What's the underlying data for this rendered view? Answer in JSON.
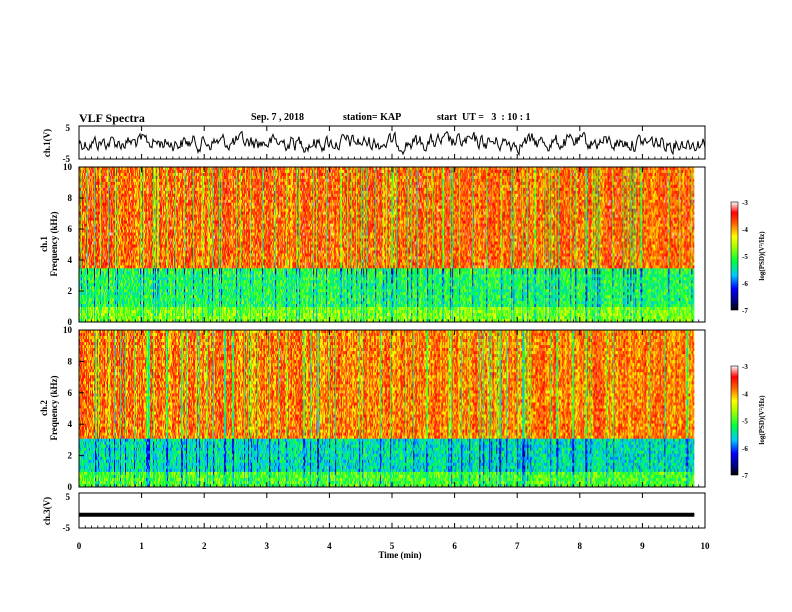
{
  "header": {
    "title": "VLF Spectra",
    "date": "Sep. 7 , 2018",
    "station": "station= KAP",
    "start": "start  UT =   3  : 10 : 1"
  },
  "chart_data": [
    {
      "type": "line",
      "ylabel": "ch.1(V)",
      "ylim": [
        -5,
        5
      ],
      "yticks": [
        "5",
        "-5"
      ],
      "xlim": [
        0,
        10
      ],
      "description_values": {
        "baseline": 0,
        "amplitude": 2
      }
    },
    {
      "type": "heatmap",
      "ylabel_line1": "ch.1",
      "ylabel_line2": "Frequency (kHz)",
      "ylim": [
        0,
        10
      ],
      "yticks": [
        "0",
        "2",
        "4",
        "6",
        "8",
        "10"
      ],
      "xlim": [
        0,
        9.83
      ],
      "colorbar": {
        "min": -7,
        "max": -3,
        "ticks": [
          "-3",
          "-4",
          "-5",
          "-6",
          "-7"
        ],
        "label": "log(PSD)(V²/Hz)"
      },
      "bands": [
        {
          "from": 0,
          "to": 1,
          "level": -4.8
        },
        {
          "from": 1,
          "to": 3.5,
          "level": -5.2
        },
        {
          "from": 3.5,
          "to": 10,
          "level": -3.8
        }
      ]
    },
    {
      "type": "heatmap",
      "ylabel_line1": "ch.2",
      "ylabel_line2": "Frequency (kHz)",
      "ylim": [
        0,
        10
      ],
      "yticks": [
        "0",
        "2",
        "4",
        "6",
        "8",
        "10"
      ],
      "xlim": [
        0,
        9.83
      ],
      "colorbar": {
        "min": -7,
        "max": -3,
        "ticks": [
          "-3",
          "-4",
          "-5",
          "-6",
          "-7"
        ],
        "label": "log(PSD)(V²/Hz)"
      },
      "bands": [
        {
          "from": 0,
          "to": 1,
          "level": -5.0
        },
        {
          "from": 1,
          "to": 3,
          "level": -5.5
        },
        {
          "from": 3,
          "to": 10,
          "level": -3.9
        }
      ]
    },
    {
      "type": "line",
      "ylabel": "ch.3(V)",
      "ylim": [
        -5,
        5
      ],
      "yticks": [
        "5",
        "-5"
      ],
      "xlim": [
        0,
        10
      ],
      "xticks": [
        "0",
        "1",
        "2",
        "3",
        "4",
        "5",
        "6",
        "7",
        "8",
        "9",
        "10"
      ],
      "xlabel": "Time (min)",
      "values_level": -1.2
    }
  ],
  "colors": {
    "scale": [
      "#000080",
      "#0000ff",
      "#00c8ff",
      "#00ff80",
      "#40ff00",
      "#ffff00",
      "#ff8000",
      "#ff0000",
      "#ffffff"
    ]
  }
}
